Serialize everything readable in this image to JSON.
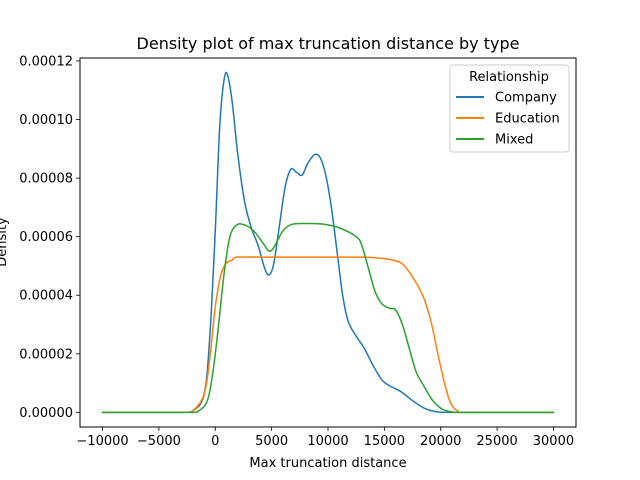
{
  "chart_data": {
    "type": "line",
    "title": "Density plot of max truncation distance by type",
    "xlabel": "Max truncation distance",
    "ylabel": "Density",
    "xlim": [
      -12000,
      32000
    ],
    "ylim": [
      -5e-06,
      0.000121
    ],
    "xticks": [
      -10000,
      -5000,
      0,
      5000,
      10000,
      15000,
      20000,
      25000,
      30000
    ],
    "xtick_labels": [
      "−10000",
      "−5000",
      "0",
      "5000",
      "10000",
      "15000",
      "20000",
      "25000",
      "30000"
    ],
    "yticks": [
      0,
      2e-05,
      4e-05,
      6e-05,
      8e-05,
      0.0001,
      0.00012
    ],
    "ytick_labels": [
      "0.00000",
      "0.00002",
      "0.00004",
      "0.00006",
      "0.00008",
      "0.00010",
      "0.00012"
    ],
    "grid": false,
    "legend": {
      "title": "Relationship",
      "position": "top-right"
    },
    "series": [
      {
        "name": "Company",
        "color": "#1f77b4",
        "points": [
          [
            -10000,
            0
          ],
          [
            -3000,
            0
          ],
          [
            -2000,
            5e-07
          ],
          [
            -1000,
            6e-06
          ],
          [
            -500,
            2.5e-05
          ],
          [
            0,
            6.2e-05
          ],
          [
            400,
            9.8e-05
          ],
          [
            800,
            0.000114
          ],
          [
            1100,
            0.000115
          ],
          [
            1500,
            0.000106
          ],
          [
            2000,
            8.8e-05
          ],
          [
            2600,
            7.2e-05
          ],
          [
            3200,
            6.3e-05
          ],
          [
            3800,
            5.7e-05
          ],
          [
            4400,
            4.9e-05
          ],
          [
            4800,
            4.7e-05
          ],
          [
            5200,
            5.1e-05
          ],
          [
            5700,
            6.4e-05
          ],
          [
            6200,
            7.7e-05
          ],
          [
            6700,
            8.3e-05
          ],
          [
            7200,
            8.2e-05
          ],
          [
            7700,
            8.1e-05
          ],
          [
            8200,
            8.5e-05
          ],
          [
            8800,
            8.8e-05
          ],
          [
            9300,
            8.7e-05
          ],
          [
            9800,
            8.1e-05
          ],
          [
            10300,
            7e-05
          ],
          [
            10800,
            5.5e-05
          ],
          [
            11300,
            4e-05
          ],
          [
            11800,
            3.1e-05
          ],
          [
            12500,
            2.6e-05
          ],
          [
            13200,
            2.2e-05
          ],
          [
            14000,
            1.6e-05
          ],
          [
            14800,
            1.1e-05
          ],
          [
            15500,
            9e-06
          ],
          [
            16500,
            7e-06
          ],
          [
            17500,
            4e-06
          ],
          [
            18500,
            1.5e-06
          ],
          [
            19500,
            3e-07
          ],
          [
            21000,
            0
          ],
          [
            30000,
            0
          ]
        ]
      },
      {
        "name": "Education",
        "color": "#ff7f0e",
        "points": [
          [
            -10000,
            0
          ],
          [
            -3000,
            0
          ],
          [
            -2000,
            5e-07
          ],
          [
            -1000,
            6e-06
          ],
          [
            -500,
            1.8e-05
          ],
          [
            0,
            3.6e-05
          ],
          [
            500,
            4.7e-05
          ],
          [
            1000,
            5.1e-05
          ],
          [
            1500,
            5.2e-05
          ],
          [
            2000,
            5.3e-05
          ],
          [
            5000,
            5.3e-05
          ],
          [
            10000,
            5.3e-05
          ],
          [
            13000,
            5.3e-05
          ],
          [
            14500,
            5.27e-05
          ],
          [
            15500,
            5.22e-05
          ],
          [
            16500,
            5.1e-05
          ],
          [
            17200,
            4.8e-05
          ],
          [
            18000,
            4.3e-05
          ],
          [
            18600,
            3.8e-05
          ],
          [
            19200,
            3e-05
          ],
          [
            19800,
            1.9e-05
          ],
          [
            20400,
            9e-06
          ],
          [
            20900,
            3e-06
          ],
          [
            21500,
            5e-07
          ],
          [
            22500,
            0
          ],
          [
            30000,
            0
          ]
        ]
      },
      {
        "name": "Mixed",
        "color": "#2ca02c",
        "points": [
          [
            -10000,
            0
          ],
          [
            -2500,
            0
          ],
          [
            -1500,
            5e-07
          ],
          [
            -700,
            4e-06
          ],
          [
            -200,
            1.4e-05
          ],
          [
            300,
            3e-05
          ],
          [
            800,
            4.8e-05
          ],
          [
            1300,
            6e-05
          ],
          [
            1900,
            6.4e-05
          ],
          [
            2600,
            6.4e-05
          ],
          [
            3400,
            6.2e-05
          ],
          [
            4200,
            5.8e-05
          ],
          [
            4800,
            5.5e-05
          ],
          [
            5300,
            5.7e-05
          ],
          [
            6000,
            6.2e-05
          ],
          [
            6800,
            6.42e-05
          ],
          [
            8000,
            6.45e-05
          ],
          [
            9500,
            6.43e-05
          ],
          [
            11000,
            6.3e-05
          ],
          [
            12500,
            6e-05
          ],
          [
            13000,
            5.7e-05
          ],
          [
            13600,
            4.9e-05
          ],
          [
            14200,
            4.1e-05
          ],
          [
            14800,
            3.7e-05
          ],
          [
            15500,
            3.55e-05
          ],
          [
            16000,
            3.5e-05
          ],
          [
            16600,
            3e-05
          ],
          [
            17200,
            2.2e-05
          ],
          [
            17800,
            1.4e-05
          ],
          [
            18500,
            9e-06
          ],
          [
            19300,
            4e-06
          ],
          [
            20100,
            1.2e-06
          ],
          [
            21000,
            2e-07
          ],
          [
            22000,
            0
          ],
          [
            30000,
            0
          ]
        ]
      }
    ]
  }
}
